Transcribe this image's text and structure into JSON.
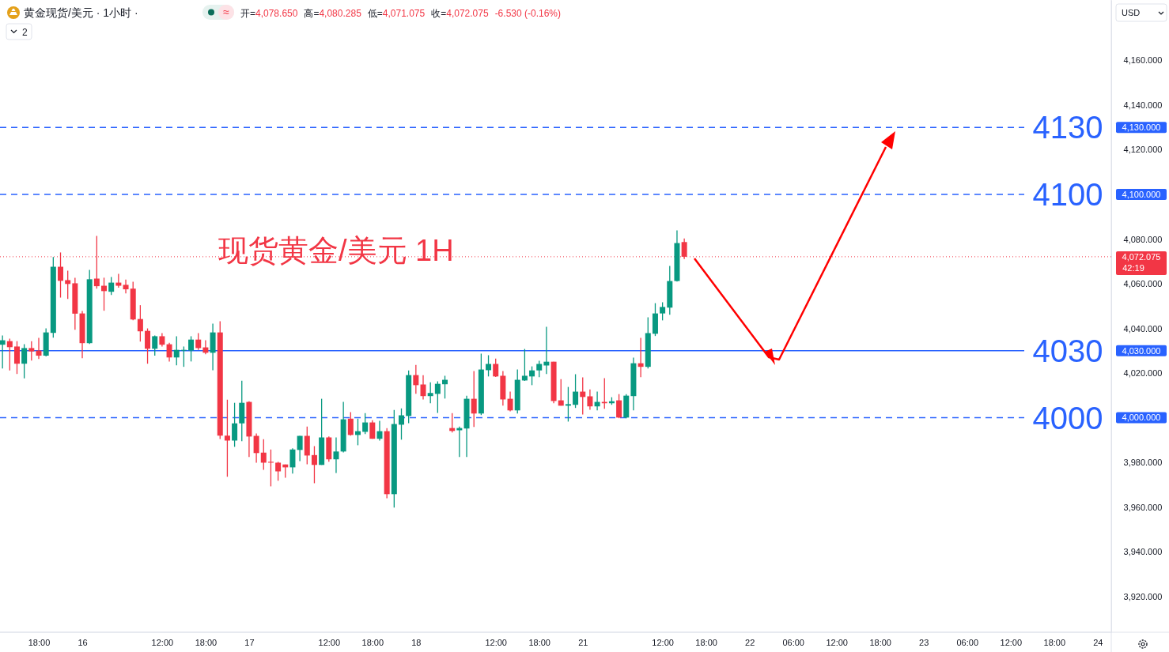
{
  "chart_data": {
    "type": "candlestick",
    "title": "黄金现货/美元 · 1小时 ·",
    "subtitle": "现货黄金/美元 1H",
    "annotations": [
      "开=4,078.650",
      "高=4,080.285",
      "低=4,071.075",
      "收=4,072.075",
      "-6.530 (-0.16%)",
      "USD",
      "2",
      "42:19",
      "4,130.000",
      "4,100.000",
      "4,030.000",
      "4,000.000",
      "4,072.075",
      "≈"
    ],
    "categories": [
      null,
      null,
      null,
      null,
      null,
      "18:00",
      null,
      null,
      null,
      null,
      null,
      "16",
      null,
      null,
      null,
      null,
      null,
      null,
      null,
      null,
      null,
      null,
      "12:00",
      null,
      null,
      null,
      null,
      null,
      "18:00",
      null,
      null,
      null,
      null,
      null,
      "17",
      null,
      null,
      null,
      null,
      null,
      null,
      null,
      null,
      null,
      null,
      "12:00",
      null,
      null,
      null,
      null,
      null,
      "18:00",
      null,
      null,
      null,
      null,
      null,
      "18",
      null,
      null,
      null,
      null,
      null,
      null,
      null,
      null,
      null,
      null,
      "12:00",
      null,
      null,
      null,
      null,
      null,
      "18:00",
      null,
      null,
      null,
      null,
      null,
      "21",
      null,
      null,
      null,
      null,
      null,
      null,
      null,
      null,
      null,
      null,
      "12:00",
      null,
      null,
      null,
      null,
      null,
      "18:00",
      null,
      null,
      null,
      null,
      null,
      "22",
      null,
      null,
      null,
      null,
      null,
      "06:00",
      null,
      null,
      null,
      null,
      null,
      "12:00",
      null,
      null,
      null,
      null,
      null,
      "18:00",
      null,
      null,
      null,
      null,
      null,
      "23",
      null,
      null,
      null,
      null,
      null,
      "06:00",
      null,
      null,
      null,
      null,
      null,
      "12:00",
      null,
      null,
      null,
      null,
      null,
      "18:00",
      null,
      null,
      null,
      null,
      null,
      "24",
      null
    ],
    "ohlc": [
      [
        4032.7,
        4036.8,
        4022.1,
        4034.7
      ],
      [
        4034.3,
        4035.4,
        4021.2,
        4031.6
      ],
      [
        4031.9,
        4034.3,
        4019.6,
        4024.2
      ],
      [
        4024.2,
        4032.9,
        4017.6,
        4031.2
      ],
      [
        4031.2,
        4034.3,
        4025.6,
        4029.7
      ],
      [
        4030.1,
        4035.8,
        4026.3,
        4027.8
      ],
      [
        4027.8,
        4040.0,
        4027.5,
        4038.2
      ],
      [
        4038.0,
        4071.9,
        4035.9,
        4067.6
      ],
      [
        4067.6,
        4074.0,
        4053.8,
        4061.3
      ],
      [
        4061.6,
        4065.8,
        4053.2,
        4059.9
      ],
      [
        4060.2,
        4062.7,
        4039.4,
        4046.6
      ],
      [
        4046.7,
        4047.8,
        4026.7,
        4033.4
      ],
      [
        4033.4,
        4066.2,
        4033.0,
        4062.0
      ],
      [
        4062.3,
        4081.4,
        4057.8,
        4058.9
      ],
      [
        4059.1,
        4062.7,
        4047.9,
        4056.7
      ],
      [
        4056.4,
        4063.0,
        4055.0,
        4060.5
      ],
      [
        4060.5,
        4064.4,
        4058.2,
        4059.1
      ],
      [
        4059.5,
        4061.9,
        4055.7,
        4057.5
      ],
      [
        4057.8,
        4060.9,
        4043.6,
        4044.0
      ],
      [
        4044.2,
        4050.4,
        4034.1,
        4038.7
      ],
      [
        4038.9,
        4040.0,
        4024.2,
        4030.9
      ],
      [
        4030.9,
        4036.8,
        4027.8,
        4036.5
      ],
      [
        4036.5,
        4037.9,
        4031.9,
        4032.7
      ],
      [
        4032.9,
        4033.6,
        4025.2,
        4027.0
      ],
      [
        4027.0,
        4036.5,
        4023.5,
        4030.4
      ],
      [
        4030.1,
        4031.9,
        4022.8,
        4030.4
      ],
      [
        4030.1,
        4036.5,
        4025.2,
        4035.0
      ],
      [
        4035.0,
        4037.9,
        4030.4,
        4031.2
      ],
      [
        4031.5,
        4034.7,
        4028.4,
        4029.1
      ],
      [
        4029.1,
        4042.1,
        4021.3,
        4038.2
      ],
      [
        4038.2,
        4043.2,
        3990.5,
        3992.0
      ],
      [
        3992.0,
        4008.1,
        3973.6,
        3989.8
      ],
      [
        3989.8,
        4006.7,
        3987.0,
        3997.5
      ],
      [
        3997.5,
        4016.6,
        3989.5,
        4006.7
      ],
      [
        4007.1,
        4007.4,
        3982.4,
        3991.6
      ],
      [
        3991.9,
        3993.0,
        3979.9,
        3984.2
      ],
      [
        3984.4,
        3990.4,
        3976.7,
        3979.9
      ],
      [
        3980.3,
        3985.8,
        3969.3,
        3979.9
      ],
      [
        3979.9,
        3980.3,
        3971.8,
        3976.0
      ],
      [
        3979.1,
        3979.1,
        3973.2,
        3977.8
      ],
      [
        3977.8,
        3986.3,
        3975.0,
        3985.8
      ],
      [
        3985.6,
        3991.9,
        3980.6,
        3991.9
      ],
      [
        3991.9,
        3996.1,
        3979.2,
        3983.1
      ],
      [
        3983.3,
        3987.3,
        3970.7,
        3978.9
      ],
      [
        3978.9,
        4008.5,
        3978.9,
        3991.2
      ],
      [
        3991.2,
        3991.6,
        3980.3,
        3981.4
      ],
      [
        3981.4,
        3991.2,
        3975.3,
        3984.9
      ],
      [
        3984.9,
        4007.1,
        3984.5,
        3999.3
      ],
      [
        3999.6,
        4002.5,
        3992.0,
        3992.3
      ],
      [
        3992.3,
        3999.6,
        3987.7,
        3994.0
      ],
      [
        3993.7,
        4002.1,
        3992.7,
        3997.9
      ],
      [
        3997.9,
        3998.9,
        3990.6,
        3990.6
      ],
      [
        3990.6,
        3998.6,
        3989.8,
        3994.0
      ],
      [
        3994.0,
        3995.4,
        3964.0,
        3965.8
      ],
      [
        3965.8,
        4003.5,
        3959.8,
        3997.2
      ],
      [
        3996.9,
        4004.2,
        3990.2,
        4001.1
      ],
      [
        4000.8,
        4021.2,
        3997.6,
        4019.1
      ],
      [
        4019.1,
        4023.7,
        4010.7,
        4014.6
      ],
      [
        4014.9,
        4019.1,
        4008.2,
        4009.7
      ],
      [
        4009.7,
        4015.9,
        4006.5,
        4011.1
      ],
      [
        4010.7,
        4016.3,
        4002.2,
        4015.2
      ],
      [
        4015.0,
        4018.8,
        4008.6,
        4017.0
      ],
      [
        3995.4,
        4002.1,
        3993.4,
        3994.1
      ],
      [
        3994.4,
        3996.1,
        3982.4,
        3995.4
      ],
      [
        3995.2,
        4009.9,
        3982.4,
        4008.5
      ],
      [
        4008.5,
        4020.9,
        3995.9,
        4001.9
      ],
      [
        4001.9,
        4028.7,
        4001.2,
        4021.6
      ],
      [
        4021.3,
        4028.0,
        4018.5,
        4024.1
      ],
      [
        4024.1,
        4026.5,
        4018.3,
        4018.5
      ],
      [
        4018.8,
        4020.9,
        4005.4,
        4008.2
      ],
      [
        4008.5,
        4011.7,
        4002.9,
        4003.3
      ],
      [
        4003.3,
        4021.6,
        4001.9,
        4017.0
      ],
      [
        4016.7,
        4030.8,
        4016.5,
        4018.8
      ],
      [
        4018.5,
        4023.0,
        4014.6,
        4021.2
      ],
      [
        4021.2,
        4025.5,
        4018.2,
        4024.1
      ],
      [
        4023.4,
        4040.7,
        4019.6,
        4025.1
      ],
      [
        4025.1,
        4025.1,
        4006.5,
        4007.5
      ],
      [
        4007.8,
        4017.3,
        4005.4,
        4005.4
      ],
      [
        4005.4,
        4013.8,
        3998.3,
        4006.1
      ],
      [
        4005.8,
        4019.5,
        4004.4,
        4011.7
      ],
      [
        4011.7,
        4018.1,
        4001.5,
        4009.3
      ],
      [
        4009.6,
        4012.7,
        4003.6,
        4005.1
      ],
      [
        4005.1,
        4011.7,
        4003.3,
        4007.1
      ],
      [
        4007.1,
        4017.7,
        4004.0,
        4006.5
      ],
      [
        4006.5,
        4009.2,
        4005.8,
        4007.4
      ],
      [
        4007.8,
        4010.6,
        3999.8,
        4000.1
      ],
      [
        4000.1,
        4010.6,
        3999.8,
        4009.9
      ],
      [
        4009.7,
        4026.9,
        4003.3,
        4024.4
      ],
      [
        4024.4,
        4035.8,
        4018.2,
        4022.8
      ],
      [
        4022.8,
        4045.0,
        4022.1,
        4037.9
      ],
      [
        4037.6,
        4051.3,
        4036.6,
        4046.7
      ],
      [
        4046.7,
        4051.7,
        4043.6,
        4049.6
      ],
      [
        4049.3,
        4068.0,
        4046.1,
        4061.2
      ],
      [
        4061.2,
        4083.9,
        4061.0,
        4078.2
      ],
      [
        4078.65,
        4080.285,
        4071.075,
        4072.075
      ],
      null,
      null,
      null,
      null,
      null,
      null,
      null,
      null,
      null,
      null,
      null,
      null,
      null,
      null,
      null,
      null,
      null,
      null,
      null,
      null,
      null,
      null,
      null,
      null,
      null,
      null,
      null,
      null,
      null,
      null,
      null,
      null,
      null,
      null,
      null,
      null,
      null,
      null,
      null,
      null,
      null,
      null,
      null,
      null,
      null,
      null,
      null,
      null,
      null,
      null,
      null,
      null,
      null,
      null,
      null,
      null,
      null,
      null
    ],
    "ylim": [
      3904,
      4187
    ],
    "yticks": [
      {
        "value": 3920,
        "label": "3,920.000"
      },
      {
        "value": 3940,
        "label": "3,940.000"
      },
      {
        "value": 3960,
        "label": "3,960.000"
      },
      {
        "value": 3980,
        "label": "3,980.000"
      },
      {
        "value": 4000,
        "label": "4,000.000"
      },
      {
        "value": 4020,
        "label": "4,020.000"
      },
      {
        "value": 4040,
        "label": "4,040.000"
      },
      {
        "value": 4060,
        "label": "4,060.000"
      },
      {
        "value": 4080,
        "label": "4,080.000"
      },
      {
        "value": 4100,
        "label": "4,100.000"
      },
      {
        "value": 4120,
        "label": "4,120.000"
      },
      {
        "value": 4140,
        "label": "4,140.000"
      },
      {
        "value": 4160,
        "label": "4,160.000"
      }
    ],
    "ref_lines": [
      {
        "axis": "y",
        "value": 4130,
        "label": "4130",
        "color": "#2962ff",
        "line_style": "dashed"
      },
      {
        "axis": "y",
        "value": 4100,
        "label": "4100",
        "color": "#2962ff",
        "line_style": "dashed"
      },
      {
        "axis": "y",
        "value": 4030,
        "label": "4030",
        "color": "#2962ff",
        "line_style": "solid"
      },
      {
        "axis": "y",
        "value": 4000,
        "label": "4000",
        "color": "#2962ff",
        "line_style": "dashed"
      },
      {
        "axis": "y",
        "value": 4072.075,
        "color": "#f23645",
        "line_style": "dotted"
      }
    ],
    "grid": false
  }
}
